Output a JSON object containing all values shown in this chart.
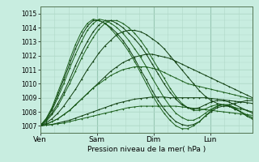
{
  "xlabel": "Pression niveau de la mer( hPa )",
  "bg_color": "#c8ede0",
  "grid_color_minor": "#b0d8c8",
  "grid_color_major": "#98c8b4",
  "line_color": "#1a5e1a",
  "line_color_dark": "#0d3d0d",
  "ylim": [
    1006.5,
    1015.5
  ],
  "yticks": [
    1007,
    1008,
    1009,
    1010,
    1011,
    1012,
    1013,
    1014,
    1015
  ],
  "xtick_labels": [
    "Ven",
    "Sam",
    "Dim",
    "Lun"
  ],
  "xtick_positions": [
    0,
    24,
    48,
    72
  ],
  "total_hours": 90,
  "series": [
    [
      1007.0,
      1007.1,
      1007.3,
      1007.5,
      1007.8,
      1008.1,
      1008.5,
      1008.9,
      1009.3,
      1009.7,
      1010.1,
      1010.5,
      1010.9,
      1011.2,
      1011.5,
      1011.7,
      1011.9,
      1012.0,
      1012.1,
      1012.1,
      1012.0,
      1011.9,
      1011.8,
      1011.6,
      1011.4,
      1011.2,
      1011.0,
      1010.8,
      1010.6,
      1010.4,
      1010.2,
      1010.0,
      1009.8,
      1009.6,
      1009.4,
      1009.2,
      1009.0
    ],
    [
      1007.0,
      1007.1,
      1007.3,
      1007.5,
      1007.8,
      1008.1,
      1008.5,
      1008.9,
      1009.3,
      1009.7,
      1010.0,
      1010.3,
      1010.6,
      1010.8,
      1011.0,
      1011.1,
      1011.2,
      1011.2,
      1011.2,
      1011.1,
      1011.0,
      1010.8,
      1010.6,
      1010.4,
      1010.2,
      1010.0,
      1009.9,
      1009.8,
      1009.7,
      1009.6,
      1009.5,
      1009.4,
      1009.3,
      1009.2,
      1009.1,
      1009.0,
      1008.9
    ],
    [
      1007.0,
      1007.05,
      1007.1,
      1007.2,
      1007.3,
      1007.4,
      1007.55,
      1007.7,
      1007.85,
      1008.0,
      1008.15,
      1008.3,
      1008.45,
      1008.6,
      1008.7,
      1008.8,
      1008.9,
      1008.95,
      1009.0,
      1009.05,
      1009.05,
      1009.05,
      1009.0,
      1009.0,
      1009.0,
      1009.0,
      1009.0,
      1009.0,
      1009.0,
      1008.95,
      1008.9,
      1008.85,
      1008.8,
      1008.75,
      1008.7,
      1008.65,
      1008.6
    ],
    [
      1007.0,
      1007.05,
      1007.1,
      1007.15,
      1007.2,
      1007.3,
      1007.4,
      1007.5,
      1007.6,
      1007.7,
      1007.8,
      1007.9,
      1008.0,
      1008.1,
      1008.2,
      1008.3,
      1008.35,
      1008.4,
      1008.4,
      1008.4,
      1008.4,
      1008.4,
      1008.4,
      1008.4,
      1008.35,
      1008.3,
      1008.25,
      1008.2,
      1008.15,
      1008.1,
      1008.05,
      1008.0,
      1007.95,
      1007.9,
      1007.85,
      1007.8,
      1007.75
    ],
    [
      1007.0,
      1007.2,
      1007.5,
      1007.9,
      1008.4,
      1009.0,
      1009.6,
      1010.3,
      1011.0,
      1011.6,
      1012.2,
      1012.7,
      1013.1,
      1013.5,
      1013.7,
      1013.8,
      1013.8,
      1013.7,
      1013.5,
      1013.2,
      1012.9,
      1012.5,
      1012.0,
      1011.5,
      1011.0,
      1010.5,
      1010.0,
      1009.5,
      1009.1,
      1008.8,
      1008.6,
      1008.5,
      1008.5,
      1008.6,
      1008.7,
      1008.8,
      1008.8
    ],
    [
      1007.0,
      1007.3,
      1007.8,
      1008.4,
      1009.2,
      1010.0,
      1010.9,
      1011.8,
      1012.6,
      1013.3,
      1013.9,
      1014.3,
      1014.5,
      1014.5,
      1014.3,
      1014.0,
      1013.6,
      1013.1,
      1012.5,
      1011.8,
      1011.1,
      1010.4,
      1009.7,
      1009.1,
      1008.6,
      1008.3,
      1008.1,
      1008.1,
      1008.2,
      1008.4,
      1008.5,
      1008.5,
      1008.4,
      1008.3,
      1008.2,
      1008.1,
      1008.0
    ],
    [
      1007.0,
      1007.4,
      1007.9,
      1008.6,
      1009.4,
      1010.3,
      1011.3,
      1012.2,
      1013.0,
      1013.7,
      1014.2,
      1014.5,
      1014.5,
      1014.3,
      1014.0,
      1013.6,
      1013.2,
      1012.7,
      1012.1,
      1011.4,
      1010.7,
      1010.0,
      1009.4,
      1008.9,
      1008.5,
      1008.3,
      1008.2,
      1008.3,
      1008.5,
      1008.7,
      1008.8,
      1008.8,
      1008.7,
      1008.5,
      1008.3,
      1008.1,
      1007.9
    ],
    [
      1007.0,
      1007.4,
      1008.1,
      1009.0,
      1010.0,
      1011.1,
      1012.1,
      1013.0,
      1013.8,
      1014.3,
      1014.6,
      1014.5,
      1014.3,
      1014.0,
      1013.6,
      1013.1,
      1012.5,
      1011.9,
      1011.2,
      1010.4,
      1009.7,
      1009.0,
      1008.4,
      1007.9,
      1007.6,
      1007.4,
      1007.4,
      1007.6,
      1007.9,
      1008.2,
      1008.4,
      1008.5,
      1008.4,
      1008.2,
      1008.0,
      1007.8,
      1007.6
    ],
    [
      1007.0,
      1007.5,
      1008.2,
      1009.2,
      1010.3,
      1011.4,
      1012.5,
      1013.4,
      1014.1,
      1014.5,
      1014.5,
      1014.3,
      1014.0,
      1013.6,
      1013.1,
      1012.5,
      1011.8,
      1011.0,
      1010.3,
      1009.5,
      1008.8,
      1008.2,
      1007.7,
      1007.3,
      1007.1,
      1007.0,
      1007.1,
      1007.3,
      1007.7,
      1008.0,
      1008.3,
      1008.4,
      1008.4,
      1008.2,
      1008.0,
      1007.7,
      1007.5
    ],
    [
      1007.0,
      1007.5,
      1008.3,
      1009.4,
      1010.5,
      1011.7,
      1012.8,
      1013.7,
      1014.3,
      1014.6,
      1014.5,
      1014.3,
      1013.9,
      1013.4,
      1012.9,
      1012.3,
      1011.6,
      1010.8,
      1010.0,
      1009.2,
      1008.5,
      1007.9,
      1007.4,
      1007.0,
      1006.8,
      1006.8,
      1007.0,
      1007.3,
      1007.7,
      1008.1,
      1008.4,
      1008.5,
      1008.5,
      1008.3,
      1008.0,
      1007.7,
      1007.5
    ]
  ]
}
